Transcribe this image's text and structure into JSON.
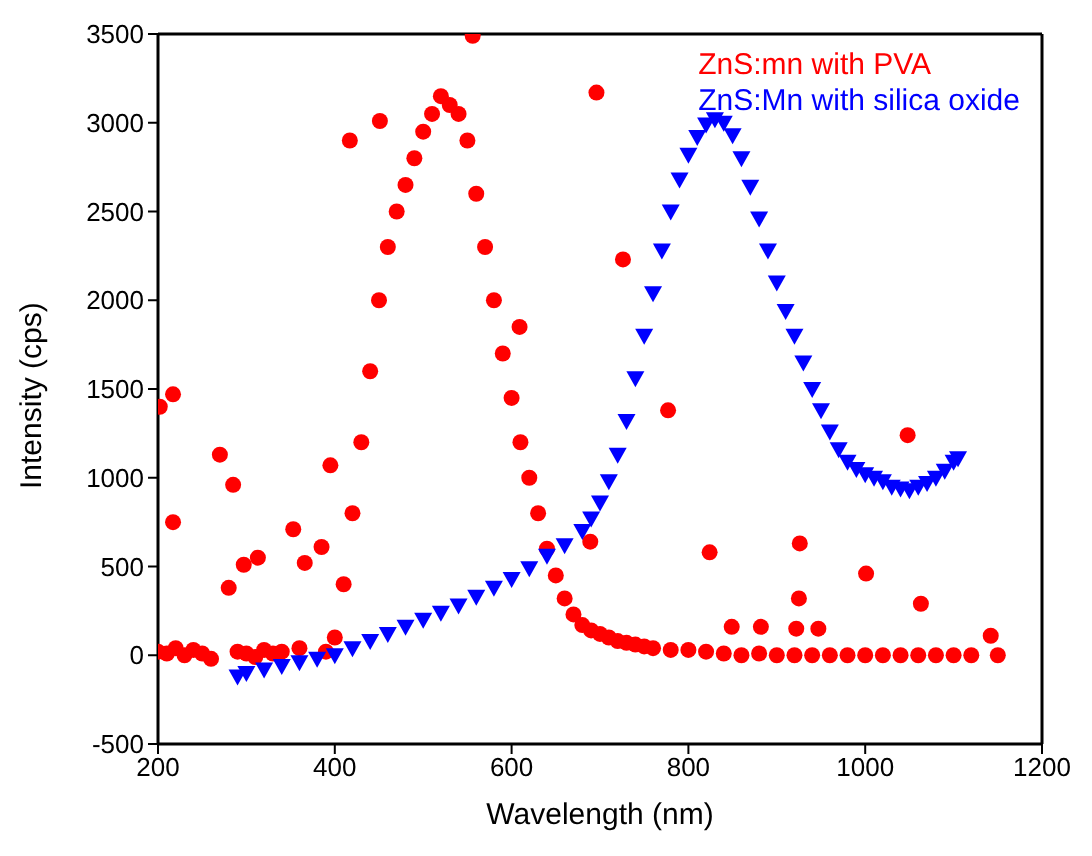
{
  "chart_data": {
    "type": "scatter",
    "xlabel": "Wavelength (nm)",
    "ylabel": "Intensity (cps)",
    "xlim": [
      200,
      1200
    ],
    "xticks": [
      200,
      400,
      600,
      800,
      1000,
      1200
    ],
    "ylim": [
      -500,
      3500
    ],
    "yticks": [
      -500,
      0,
      500,
      1000,
      1500,
      2000,
      2500,
      3000,
      3500
    ],
    "legend": "top right",
    "series": [
      {
        "name": "ZnS:mn with PVA",
        "color": "#ff0000",
        "marker": "circle",
        "x": [
          200,
          202,
          210,
          217,
          217,
          220,
          230,
          240,
          250,
          260,
          270,
          280,
          285,
          290,
          297,
          300,
          310,
          313,
          320,
          330,
          340,
          353,
          360,
          366,
          385,
          390,
          395,
          400,
          410,
          417,
          420,
          430,
          440,
          450,
          451,
          460,
          470,
          480,
          490,
          500,
          510,
          520,
          530,
          540,
          550,
          556,
          560,
          570,
          580,
          590,
          600,
          609,
          610,
          620,
          630,
          640,
          650,
          660,
          670,
          680,
          689,
          690,
          696,
          700,
          710,
          720,
          726,
          730,
          740,
          750,
          760,
          777,
          780,
          800,
          820,
          824,
          840,
          849,
          860,
          880,
          882,
          900,
          920,
          922,
          925,
          926,
          940,
          947,
          960,
          980,
          1000,
          1001,
          1020,
          1040,
          1048,
          1060,
          1063,
          1080,
          1100,
          1120,
          1142,
          1150
        ],
        "values": [
          20,
          1400,
          10,
          1470,
          750,
          40,
          0,
          30,
          10,
          -20,
          1130,
          380,
          960,
          20,
          510,
          10,
          -10,
          550,
          30,
          10,
          20,
          710,
          40,
          520,
          610,
          20,
          1070,
          100,
          400,
          2900,
          800,
          1200,
          1600,
          2000,
          3010,
          2300,
          2500,
          2650,
          2800,
          2950,
          3050,
          3150,
          3100,
          3050,
          2900,
          3490,
          2600,
          2300,
          2000,
          1700,
          1450,
          1850,
          1200,
          1000,
          800,
          600,
          450,
          320,
          230,
          170,
          640,
          140,
          3170,
          120,
          100,
          80,
          2230,
          70,
          60,
          50,
          40,
          1380,
          30,
          30,
          20,
          580,
          10,
          160,
          0,
          10,
          160,
          0,
          0,
          150,
          320,
          630,
          0,
          150,
          0,
          0,
          0,
          460,
          0,
          0,
          1240,
          0,
          290,
          0,
          0,
          0,
          110,
          0
        ]
      },
      {
        "name": "ZnS:Mn with silica oxide",
        "color": "#0000ff",
        "marker": "triangle",
        "x": [
          290,
          300,
          320,
          340,
          360,
          380,
          400,
          420,
          440,
          460,
          480,
          500,
          520,
          540,
          560,
          580,
          600,
          620,
          640,
          660,
          680,
          690,
          700,
          710,
          720,
          730,
          740,
          750,
          760,
          770,
          780,
          790,
          800,
          810,
          820,
          830,
          840,
          850,
          860,
          870,
          880,
          890,
          900,
          910,
          920,
          930,
          940,
          950,
          960,
          970,
          980,
          990,
          1000,
          1010,
          1020,
          1030,
          1040,
          1050,
          1060,
          1070,
          1080,
          1090,
          1100,
          1105
        ],
        "values": [
          -120,
          -100,
          -80,
          -60,
          -40,
          -20,
          0,
          40,
          80,
          120,
          160,
          200,
          240,
          280,
          330,
          380,
          430,
          490,
          560,
          620,
          700,
          770,
          860,
          980,
          1130,
          1320,
          1560,
          1800,
          2040,
          2280,
          2500,
          2680,
          2820,
          2920,
          2990,
          3020,
          3000,
          2930,
          2800,
          2640,
          2460,
          2280,
          2100,
          1940,
          1800,
          1650,
          1500,
          1380,
          1260,
          1160,
          1090,
          1050,
          1020,
          1000,
          980,
          950,
          940,
          930,
          950,
          970,
          1000,
          1040,
          1090,
          1110
        ]
      }
    ]
  }
}
